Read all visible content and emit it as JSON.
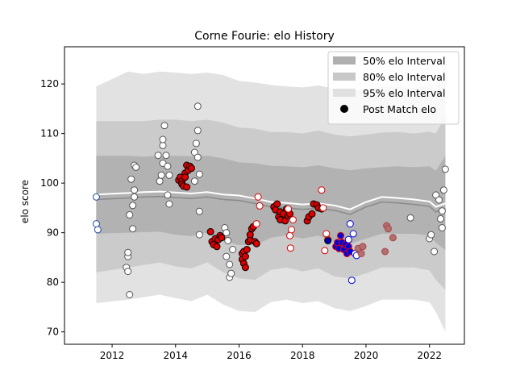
{
  "chart_data": {
    "type": "scatter",
    "title": "Corne Fourie: elo History",
    "xlabel": "",
    "ylabel": "elo score",
    "xlim": [
      2010.5,
      2023.1
    ],
    "ylim": [
      67.5,
      127.5
    ],
    "x_ticks": [
      2012,
      2014,
      2016,
      2018,
      2020,
      2022
    ],
    "y_ticks": [
      70,
      80,
      90,
      100,
      110,
      120
    ],
    "legend_position": "top-right",
    "legend": [
      {
        "label": "50% elo Interval",
        "kind": "patch",
        "color": "#b0b0b0"
      },
      {
        "label": "80% elo Interval",
        "kind": "patch",
        "color": "#c8c8c8"
      },
      {
        "label": "95% elo Interval",
        "kind": "patch",
        "color": "#e0e0e0"
      },
      {
        "label": "Post Match elo",
        "kind": "dot",
        "color": "#000000"
      }
    ],
    "colors": {
      "band95": "#e2e2e2",
      "band80": "#cbcbcb",
      "band50": "#b2b2b2",
      "mean_line": "#8c8c8c",
      "outer_line": "#ffffff",
      "white_marker": "#ffffff",
      "red_marker": "#dd0000",
      "blue_marker": "#0000dd"
    },
    "bands": {
      "x": [
        2011.5,
        2012.5,
        2013.0,
        2013.5,
        2014.0,
        2014.5,
        2015.0,
        2015.5,
        2016.0,
        2016.5,
        2017.0,
        2017.5,
        2018.0,
        2018.5,
        2019.0,
        2019.5,
        2020.0,
        2020.5,
        2021.0,
        2021.5,
        2022.0,
        2022.2,
        2022.5
      ],
      "mean": [
        97.0,
        97.3,
        97.5,
        97.6,
        97.4,
        97.2,
        97.5,
        97.0,
        96.8,
        96.2,
        95.5,
        95.3,
        95.0,
        95.2,
        94.8,
        94.0,
        95.5,
        96.5,
        96.3,
        96.0,
        95.6,
        94.5,
        95.2
      ],
      "p50_lo": [
        89.8,
        90.0,
        90.1,
        90.2,
        89.6,
        89.3,
        90.0,
        88.5,
        87.5,
        87.5,
        89.0,
        89.5,
        88.8,
        89.4,
        88.2,
        87.8,
        88.8,
        89.8,
        89.8,
        89.8,
        89.4,
        88.0,
        86.5
      ],
      "p50_hi": [
        105.5,
        105.5,
        105.3,
        105.5,
        105.5,
        105.4,
        105.5,
        105.0,
        104.2,
        104.0,
        103.5,
        103.4,
        103.2,
        103.6,
        103.0,
        102.6,
        103.0,
        103.2,
        103.4,
        103.2,
        103.4,
        102.5,
        105.5
      ],
      "p80_lo": [
        82.0,
        83.0,
        83.5,
        84.0,
        83.2,
        82.8,
        84.0,
        82.0,
        80.8,
        80.5,
        82.5,
        83.0,
        82.2,
        82.8,
        81.2,
        80.8,
        81.8,
        83.0,
        83.0,
        83.0,
        82.4,
        80.5,
        78.5
      ],
      "p80_hi": [
        112.5,
        112.5,
        112.5,
        112.8,
        112.8,
        112.5,
        112.8,
        112.2,
        111.2,
        111.0,
        110.3,
        110.3,
        110.0,
        110.6,
        109.8,
        109.4,
        109.8,
        110.2,
        110.3,
        110.0,
        110.4,
        110.0,
        113.5
      ],
      "p95_lo": [
        75.8,
        76.5,
        77.0,
        77.5,
        76.8,
        76.2,
        77.5,
        75.5,
        74.2,
        74.0,
        76.0,
        76.5,
        75.8,
        76.2,
        74.8,
        74.2,
        75.2,
        76.5,
        76.5,
        76.5,
        76.0,
        74.0,
        70.0
      ],
      "p95_hi": [
        119.5,
        122.5,
        122.0,
        122.5,
        122.3,
        122.0,
        122.3,
        121.8,
        120.6,
        120.3,
        119.8,
        119.5,
        119.3,
        119.7,
        119.0,
        118.6,
        119.0,
        119.4,
        119.5,
        119.2,
        119.6,
        119.0,
        124.0
      ]
    },
    "series": [
      {
        "fill": "white",
        "edge": "gray",
        "points": [
          [
            2011.5,
            97.2,
            "b"
          ],
          [
            2011.5,
            91.8,
            "b"
          ],
          [
            2011.55,
            90.6,
            "b"
          ],
          [
            2012.45,
            83.0,
            "g"
          ],
          [
            2012.5,
            85.2,
            "g"
          ],
          [
            2012.5,
            86.0,
            "g"
          ],
          [
            2012.5,
            82.2,
            "g"
          ],
          [
            2012.55,
            77.5,
            "g"
          ],
          [
            2012.55,
            93.6,
            "g"
          ],
          [
            2012.6,
            100.8,
            "g"
          ],
          [
            2012.65,
            90.8,
            "g"
          ],
          [
            2012.65,
            95.5,
            "g"
          ],
          [
            2012.7,
            97.2,
            "g"
          ],
          [
            2012.7,
            98.6,
            "g"
          ],
          [
            2012.7,
            103.6,
            "g"
          ],
          [
            2012.75,
            103.2,
            "g"
          ],
          [
            2013.45,
            105.6,
            "g"
          ],
          [
            2013.5,
            100.4,
            "g"
          ],
          [
            2013.55,
            101.6,
            "g"
          ],
          [
            2013.6,
            104.0,
            "g"
          ],
          [
            2013.6,
            107.6,
            "g"
          ],
          [
            2013.6,
            108.8,
            "g"
          ],
          [
            2013.65,
            111.6,
            "g"
          ],
          [
            2013.7,
            105.6,
            "g"
          ],
          [
            2013.75,
            103.4,
            "g"
          ],
          [
            2013.75,
            97.6,
            "g"
          ],
          [
            2013.8,
            95.8,
            "g"
          ],
          [
            2013.8,
            101.6,
            "g"
          ],
          [
            2014.6,
            100.4,
            "g"
          ],
          [
            2014.6,
            106.2,
            "g"
          ],
          [
            2014.65,
            108.0,
            "g"
          ],
          [
            2014.7,
            110.6,
            "g"
          ],
          [
            2014.7,
            115.5,
            "g"
          ],
          [
            2014.7,
            105.2,
            "g"
          ],
          [
            2014.75,
            101.8,
            "g"
          ],
          [
            2014.75,
            94.3,
            "g"
          ],
          [
            2014.75,
            89.6,
            "g"
          ],
          [
            2015.55,
            91.0,
            "g"
          ],
          [
            2015.6,
            90.0,
            "g"
          ],
          [
            2015.6,
            85.2,
            "g"
          ],
          [
            2015.65,
            88.4,
            "g"
          ],
          [
            2015.7,
            83.6,
            "g"
          ],
          [
            2015.7,
            81.0,
            "g"
          ],
          [
            2015.75,
            81.8,
            "g"
          ],
          [
            2015.8,
            86.6,
            "g"
          ],
          [
            2021.4,
            93.0,
            "g"
          ],
          [
            2022.0,
            88.8,
            "g"
          ],
          [
            2022.05,
            89.6,
            "g"
          ],
          [
            2022.15,
            86.2,
            "g"
          ],
          [
            2022.2,
            97.6,
            "g"
          ],
          [
            2022.3,
            96.6,
            "g"
          ],
          [
            2022.35,
            92.8,
            "g"
          ],
          [
            2022.4,
            91.0,
            "g"
          ],
          [
            2022.4,
            94.4,
            "g"
          ],
          [
            2022.45,
            98.6,
            "g"
          ],
          [
            2022.5,
            102.8,
            "g"
          ]
        ]
      },
      {
        "fill": "red",
        "edge": "black",
        "points": [
          [
            2014.1,
            100.6,
            "k"
          ],
          [
            2014.15,
            101.2,
            "k"
          ],
          [
            2014.2,
            100.4,
            "k"
          ],
          [
            2014.2,
            99.8,
            "k"
          ],
          [
            2014.25,
            99.4,
            "k"
          ],
          [
            2014.3,
            102.0,
            "k"
          ],
          [
            2014.3,
            101.2,
            "k"
          ],
          [
            2014.35,
            103.6,
            "k"
          ],
          [
            2014.35,
            99.2,
            "k"
          ],
          [
            2014.4,
            102.6,
            "k"
          ],
          [
            2014.45,
            103.4,
            "k"
          ],
          [
            2014.5,
            103.0,
            "k"
          ],
          [
            2015.1,
            90.2,
            "k"
          ],
          [
            2015.15,
            88.2,
            "k"
          ],
          [
            2015.2,
            87.6,
            "k"
          ],
          [
            2015.25,
            88.8,
            "k"
          ],
          [
            2015.3,
            87.2,
            "k"
          ],
          [
            2015.35,
            88.6,
            "k"
          ],
          [
            2015.4,
            89.4,
            "k"
          ],
          [
            2015.45,
            89.0,
            "k"
          ],
          [
            2016.1,
            85.8,
            "k"
          ],
          [
            2016.1,
            84.6,
            "k"
          ],
          [
            2016.15,
            86.2,
            "k"
          ],
          [
            2016.15,
            83.8,
            "k"
          ],
          [
            2016.2,
            83.0,
            "k"
          ],
          [
            2016.2,
            85.2,
            "k"
          ],
          [
            2016.25,
            86.6,
            "k"
          ],
          [
            2016.3,
            88.2,
            "k"
          ],
          [
            2016.35,
            88.6,
            "k"
          ],
          [
            2016.35,
            89.6,
            "k"
          ],
          [
            2016.4,
            90.8,
            "k"
          ],
          [
            2016.45,
            91.2,
            "k"
          ],
          [
            2016.5,
            88.2,
            "k"
          ],
          [
            2016.55,
            87.8,
            "k"
          ],
          [
            2017.1,
            95.2,
            "k"
          ],
          [
            2017.15,
            94.6,
            "k"
          ],
          [
            2017.2,
            95.8,
            "k"
          ],
          [
            2017.25,
            93.2,
            "k"
          ],
          [
            2017.3,
            92.6,
            "k"
          ],
          [
            2017.3,
            94.2,
            "k"
          ],
          [
            2017.4,
            93.8,
            "k"
          ],
          [
            2017.45,
            92.4,
            "k"
          ],
          [
            2017.5,
            94.8,
            "k"
          ],
          [
            2017.55,
            93.4,
            "k"
          ],
          [
            2017.6,
            93.8,
            "k"
          ],
          [
            2018.15,
            92.4,
            "k"
          ],
          [
            2018.2,
            93.2,
            "k"
          ],
          [
            2018.3,
            93.8,
            "k"
          ],
          [
            2018.35,
            95.8,
            "k"
          ],
          [
            2018.45,
            95.6,
            "k"
          ],
          [
            2018.5,
            95.0,
            "k"
          ],
          [
            2018.6,
            94.8,
            "k"
          ],
          [
            2016.55,
            91.8,
            "r"
          ],
          [
            2016.6,
            97.2,
            "r"
          ],
          [
            2016.65,
            95.4,
            "r"
          ],
          [
            2017.6,
            89.4,
            "r"
          ],
          [
            2017.62,
            86.9,
            "r"
          ],
          [
            2017.65,
            90.6,
            "r"
          ],
          [
            2017.7,
            92.6,
            "r"
          ],
          [
            2017.55,
            94.8,
            "r"
          ],
          [
            2018.6,
            98.6,
            "r"
          ],
          [
            2018.65,
            95.0,
            "r"
          ],
          [
            2018.7,
            86.4,
            "r"
          ],
          [
            2018.75,
            89.8,
            "r"
          ],
          [
            2018.8,
            88.6,
            "r"
          ]
        ]
      },
      {
        "fill": "blue",
        "edge": "navy",
        "points": [
          [
            2018.8,
            88.4,
            "k"
          ],
          [
            2019.05,
            87.2,
            "r"
          ],
          [
            2019.1,
            88.0,
            "r"
          ],
          [
            2019.15,
            86.8,
            "r"
          ],
          [
            2019.2,
            89.4,
            "r"
          ],
          [
            2019.25,
            88.0,
            "r"
          ],
          [
            2019.3,
            86.6,
            "r"
          ],
          [
            2019.35,
            87.6,
            "r"
          ],
          [
            2019.4,
            85.8,
            "r"
          ],
          [
            2019.45,
            87.2,
            "r"
          ],
          [
            2019.5,
            86.2,
            "r"
          ]
        ]
      },
      {
        "fill": "white",
        "edge": "blue",
        "points": [
          [
            2019.45,
            88.6,
            "u"
          ],
          [
            2019.5,
            91.8,
            "u"
          ],
          [
            2019.55,
            80.4,
            "u"
          ],
          [
            2019.6,
            89.8,
            "u"
          ],
          [
            2019.65,
            85.8,
            "u"
          ],
          [
            2019.7,
            85.4,
            "u"
          ]
        ]
      },
      {
        "fill": "gray-red",
        "edge": "red",
        "points": [
          [
            2019.75,
            86.8,
            "m"
          ],
          [
            2019.85,
            85.8,
            "m"
          ],
          [
            2019.9,
            87.2,
            "m"
          ],
          [
            2020.6,
            86.2,
            "m"
          ],
          [
            2020.65,
            91.4,
            "m"
          ],
          [
            2020.7,
            90.8,
            "m"
          ],
          [
            2020.85,
            89.0,
            "m"
          ]
        ]
      }
    ]
  }
}
